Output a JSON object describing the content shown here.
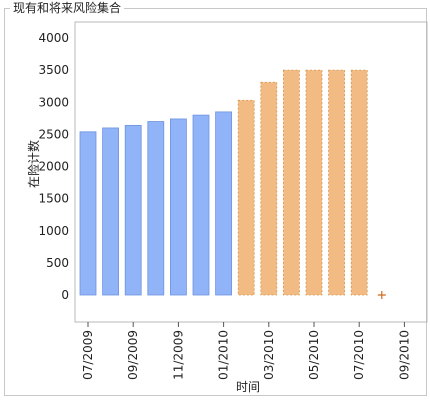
{
  "window": {
    "group_title": "现有和将来风险集合"
  },
  "colors": {
    "actual": "#91b3f8",
    "actual_edge": "#6f93de",
    "forecast": "#f2bb83",
    "forecast_edge": "#d7964f",
    "marker": "#d2691e",
    "frame": "#b8b8b8"
  },
  "chart_data": {
    "type": "bar",
    "title": "",
    "xlabel": "时间",
    "ylabel": "在险计数",
    "ylim": [
      0,
      4000
    ],
    "yticks": [
      0,
      500,
      1000,
      1500,
      2000,
      2500,
      3000,
      3500,
      4000
    ],
    "categories": [
      "07/2009",
      "08/2009",
      "09/2009",
      "10/2009",
      "11/2009",
      "12/2009",
      "01/2010",
      "02/2010",
      "03/2010",
      "04/2010",
      "05/2010",
      "06/2010",
      "07/2010",
      "08/2010",
      "09/2010"
    ],
    "xtick_labels": [
      "07/2009",
      "09/2009",
      "11/2009",
      "01/2010",
      "03/2010",
      "05/2010",
      "07/2010",
      "09/2010"
    ],
    "series": [
      {
        "kind": "actual",
        "values": [
          2540,
          2600,
          2640,
          2700,
          2740,
          2800,
          2850,
          null,
          null,
          null,
          null,
          null,
          null,
          null,
          null
        ]
      },
      {
        "kind": "forecast",
        "values": [
          null,
          null,
          null,
          null,
          null,
          null,
          null,
          3030,
          3310,
          3500,
          3500,
          3500,
          3500,
          null,
          null
        ]
      }
    ],
    "marker_point": {
      "x": "08/2010",
      "y": 0,
      "symbol": "+"
    },
    "grid": false,
    "legend": "none"
  }
}
